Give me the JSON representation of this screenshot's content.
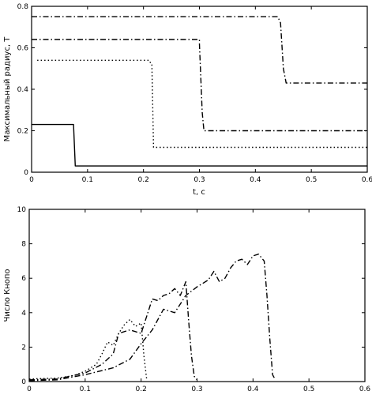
{
  "chart_data": [
    {
      "type": "line",
      "title": "",
      "xlabel": "t, c",
      "ylabel": "Максимальный радиус, Т",
      "xlim": [
        0,
        0.6
      ],
      "ylim": [
        0,
        0.8
      ],
      "xticks": [
        0,
        0.1,
        0.2,
        0.3,
        0.4,
        0.5,
        0.6
      ],
      "xtick_labels": [
        "0",
        "0.1",
        "0.2",
        "0.3",
        "0.4",
        "0.5",
        "0.6"
      ],
      "yticks": [
        0,
        0.2,
        0.4,
        0.6,
        0.8
      ],
      "ytick_labels": [
        "0",
        "0.2",
        "0.4",
        "0.6",
        "0.8"
      ],
      "grid": false,
      "series": [
        {
          "style": "solid",
          "color": "#000000",
          "x": [
            0,
            0.075,
            0.078,
            0.6
          ],
          "y": [
            0.23,
            0.23,
            0.03,
            0.03
          ]
        },
        {
          "style": "dotted",
          "color": "#000000",
          "x": [
            0.01,
            0.21,
            0.214,
            0.215,
            0.218,
            0.6
          ],
          "y": [
            0.54,
            0.54,
            0.52,
            0.52,
            0.12,
            0.12
          ]
        },
        {
          "style": "dashdot",
          "color": "#000000",
          "x": [
            0,
            0.3,
            0.3,
            0.305,
            0.308,
            0.6
          ],
          "y": [
            0.64,
            0.64,
            0.62,
            0.29,
            0.2,
            0.2
          ]
        },
        {
          "style": "dashdot",
          "color": "#000000",
          "x": [
            0,
            0.44,
            0.445,
            0.45,
            0.455,
            0.6
          ],
          "y": [
            0.75,
            0.75,
            0.72,
            0.5,
            0.43,
            0.43
          ]
        }
      ]
    },
    {
      "type": "line",
      "title": "",
      "xlabel": "",
      "ylabel": "Число Кнопо",
      "xlim": [
        0,
        0.6
      ],
      "ylim": [
        0,
        10
      ],
      "xticks": [
        0,
        0.1,
        0.2,
        0.3,
        0.4,
        0.5,
        0.6
      ],
      "xtick_labels": [
        "0",
        "0.1",
        "0.2",
        "0.3",
        "0.4",
        "0.5",
        "0.6"
      ],
      "yticks": [
        0,
        2,
        4,
        6,
        8,
        10
      ],
      "ytick_labels": [
        "0",
        "2",
        "4",
        "6",
        "8",
        "10"
      ],
      "grid": false,
      "series": [
        {
          "style": "dotted",
          "color": "#000000",
          "x": [
            0,
            0.05,
            0.08,
            0.1,
            0.12,
            0.13,
            0.14,
            0.15,
            0.16,
            0.17,
            0.18,
            0.19,
            0.2,
            0.205,
            0.21
          ],
          "y": [
            0.15,
            0.2,
            0.35,
            0.6,
            1.0,
            1.6,
            2.3,
            2.1,
            2.8,
            3.3,
            3.6,
            3.2,
            3.4,
            1.5,
            0.1
          ]
        },
        {
          "style": "dashdot",
          "color": "#000000",
          "x": [
            0,
            0.05,
            0.1,
            0.13,
            0.15,
            0.16,
            0.18,
            0.2,
            0.21,
            0.22,
            0.23,
            0.24,
            0.25,
            0.26,
            0.27,
            0.28,
            0.285,
            0.29,
            0.295,
            0.3
          ],
          "y": [
            0.1,
            0.15,
            0.5,
            1.0,
            1.6,
            2.8,
            3.0,
            2.8,
            3.8,
            4.8,
            4.7,
            5.0,
            5.1,
            5.4,
            5.0,
            5.8,
            3.5,
            1.5,
            0.3,
            0.1
          ]
        },
        {
          "style": "dashdot",
          "color": "#000000",
          "x": [
            0,
            0.05,
            0.1,
            0.15,
            0.18,
            0.2,
            0.22,
            0.24,
            0.26,
            0.28,
            0.3,
            0.32,
            0.33,
            0.34,
            0.35,
            0.36,
            0.37,
            0.38,
            0.39,
            0.4,
            0.41,
            0.42,
            0.425,
            0.43,
            0.435,
            0.44
          ],
          "y": [
            0.05,
            0.1,
            0.4,
            0.8,
            1.3,
            2.2,
            3.0,
            4.2,
            4.0,
            5.0,
            5.5,
            5.9,
            6.4,
            5.8,
            6.0,
            6.6,
            7.0,
            7.1,
            6.8,
            7.3,
            7.4,
            7.0,
            5.0,
            2.5,
            0.4,
            0.1
          ]
        }
      ]
    }
  ]
}
